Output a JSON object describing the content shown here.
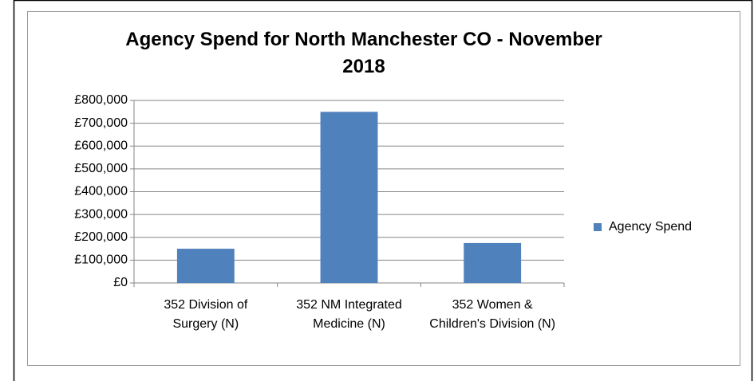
{
  "chart_data": {
    "type": "bar",
    "title": "Agency Spend for North Manchester CO - November 2018",
    "categories": [
      "352 Division of Surgery (N)",
      "352 NM Integrated Medicine (N)",
      "352 Women & Children's Division (N)"
    ],
    "series": [
      {
        "name": "Agency Spend",
        "color": "#4f81bd",
        "values": [
          150000,
          750000,
          175000
        ]
      }
    ],
    "ylim": [
      0,
      800000
    ],
    "yticks": [
      {
        "value": 0,
        "label": "£0"
      },
      {
        "value": 100000,
        "label": "£100,000"
      },
      {
        "value": 200000,
        "label": "£200,000"
      },
      {
        "value": 300000,
        "label": "£300,000"
      },
      {
        "value": 400000,
        "label": "£400,000"
      },
      {
        "value": 500000,
        "label": "£500,000"
      },
      {
        "value": 600000,
        "label": "£600,000"
      },
      {
        "value": 700000,
        "label": "£700,000"
      },
      {
        "value": 800000,
        "label": "£800,000"
      }
    ],
    "grid": true,
    "legend": "right"
  }
}
